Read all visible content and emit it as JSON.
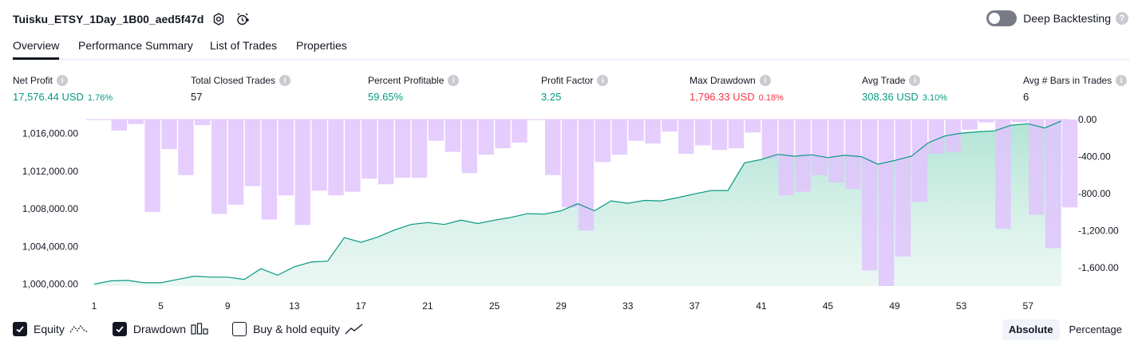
{
  "header": {
    "title": "Tuisku_ETSY_1Day_1B00_aed5f47d",
    "deep_backtesting_label": "Deep Backtesting",
    "help": "?"
  },
  "tabs": [
    {
      "label": "Overview"
    },
    {
      "label": "Performance Summary"
    },
    {
      "label": "List of Trades"
    },
    {
      "label": "Properties"
    }
  ],
  "metrics": [
    {
      "label": "Net Profit",
      "value": "17,576.44 USD",
      "pct": "1.76%"
    },
    {
      "label": "Total Closed Trades",
      "value": "57"
    },
    {
      "label": "Percent Profitable",
      "value": "59.65%"
    },
    {
      "label": "Profit Factor",
      "value": "3.25"
    },
    {
      "label": "Max Drawdown",
      "value": "1,796.33 USD",
      "pct": "0.18%"
    },
    {
      "label": "Avg Trade",
      "value": "308.36 USD",
      "pct": "3.10%"
    },
    {
      "label": "Avg # Bars in Trades",
      "value": "6"
    }
  ],
  "info_glyph": "i",
  "colors": {
    "green": "#089981",
    "red": "#f23645",
    "drawdown": "#e1c4fd",
    "drawdown_over": "#b3b6ec",
    "equity_fill": "#d6f0e8"
  },
  "chart_data": {
    "type": "area",
    "x_ticks": [
      "1",
      "5",
      "9",
      "13",
      "17",
      "21",
      "25",
      "29",
      "33",
      "37",
      "41",
      "45",
      "49",
      "53",
      "57"
    ],
    "left_axis": {
      "ticks": [
        "1,016,000.00",
        "1,012,000.00",
        "1,008,000.00",
        "1,004,000.00",
        "1,000,000.00"
      ],
      "tick_values": [
        1016000,
        1012000,
        1008000,
        1004000,
        1000000
      ],
      "ylim": [
        999800,
        1017500
      ]
    },
    "right_axis": {
      "ticks": [
        "0.00",
        "-400.00",
        "-800.00",
        "-1,200.00",
        "-1,600.00"
      ],
      "tick_values": [
        0,
        -400,
        -800,
        -1200,
        -1600
      ],
      "ylim": [
        -1800,
        0
      ]
    },
    "series": [
      {
        "name": "Equity",
        "values": [
          1000000,
          1000350,
          1000400,
          1000150,
          1000150,
          1000500,
          1000850,
          1000750,
          1000750,
          1000500,
          1001650,
          1000950,
          1001850,
          1002350,
          1002450,
          1004950,
          1004450,
          1005000,
          1005750,
          1006350,
          1006550,
          1006350,
          1006800,
          1006450,
          1006800,
          1007100,
          1007500,
          1007450,
          1007800,
          1008550,
          1007800,
          1008850,
          1008600,
          1008900,
          1008850,
          1009200,
          1009600,
          1009950,
          1009950,
          1012900,
          1013250,
          1013800,
          1013600,
          1013750,
          1013450,
          1013700,
          1013550,
          1012750,
          1013150,
          1013600,
          1015000,
          1015750,
          1016050,
          1016200,
          1016300,
          1016900,
          1017050,
          1016600,
          1017350
        ]
      },
      {
        "name": "Drawdown",
        "values": [
          0,
          -120,
          -50,
          -1000,
          -320,
          -600,
          -60,
          -1020,
          -920,
          -720,
          -1080,
          -820,
          -1140,
          -770,
          -820,
          -780,
          -640,
          -700,
          -630,
          -630,
          -230,
          -350,
          -580,
          -380,
          -310,
          -250,
          0,
          -600,
          -950,
          -1200,
          -460,
          -380,
          -230,
          -260,
          -130,
          -370,
          -280,
          -330,
          -310,
          -140,
          -420,
          -820,
          -780,
          -600,
          -680,
          -750,
          -1630,
          -1800,
          -1480,
          -890,
          -370,
          -350,
          -110,
          -30,
          -1180,
          -30,
          -1030,
          -1390,
          -950
        ]
      }
    ],
    "legend": [
      "Equity",
      "Drawdown",
      "Buy & hold equity"
    ],
    "modes": [
      "Absolute",
      "Percentage"
    ],
    "selected_mode": "Absolute"
  }
}
